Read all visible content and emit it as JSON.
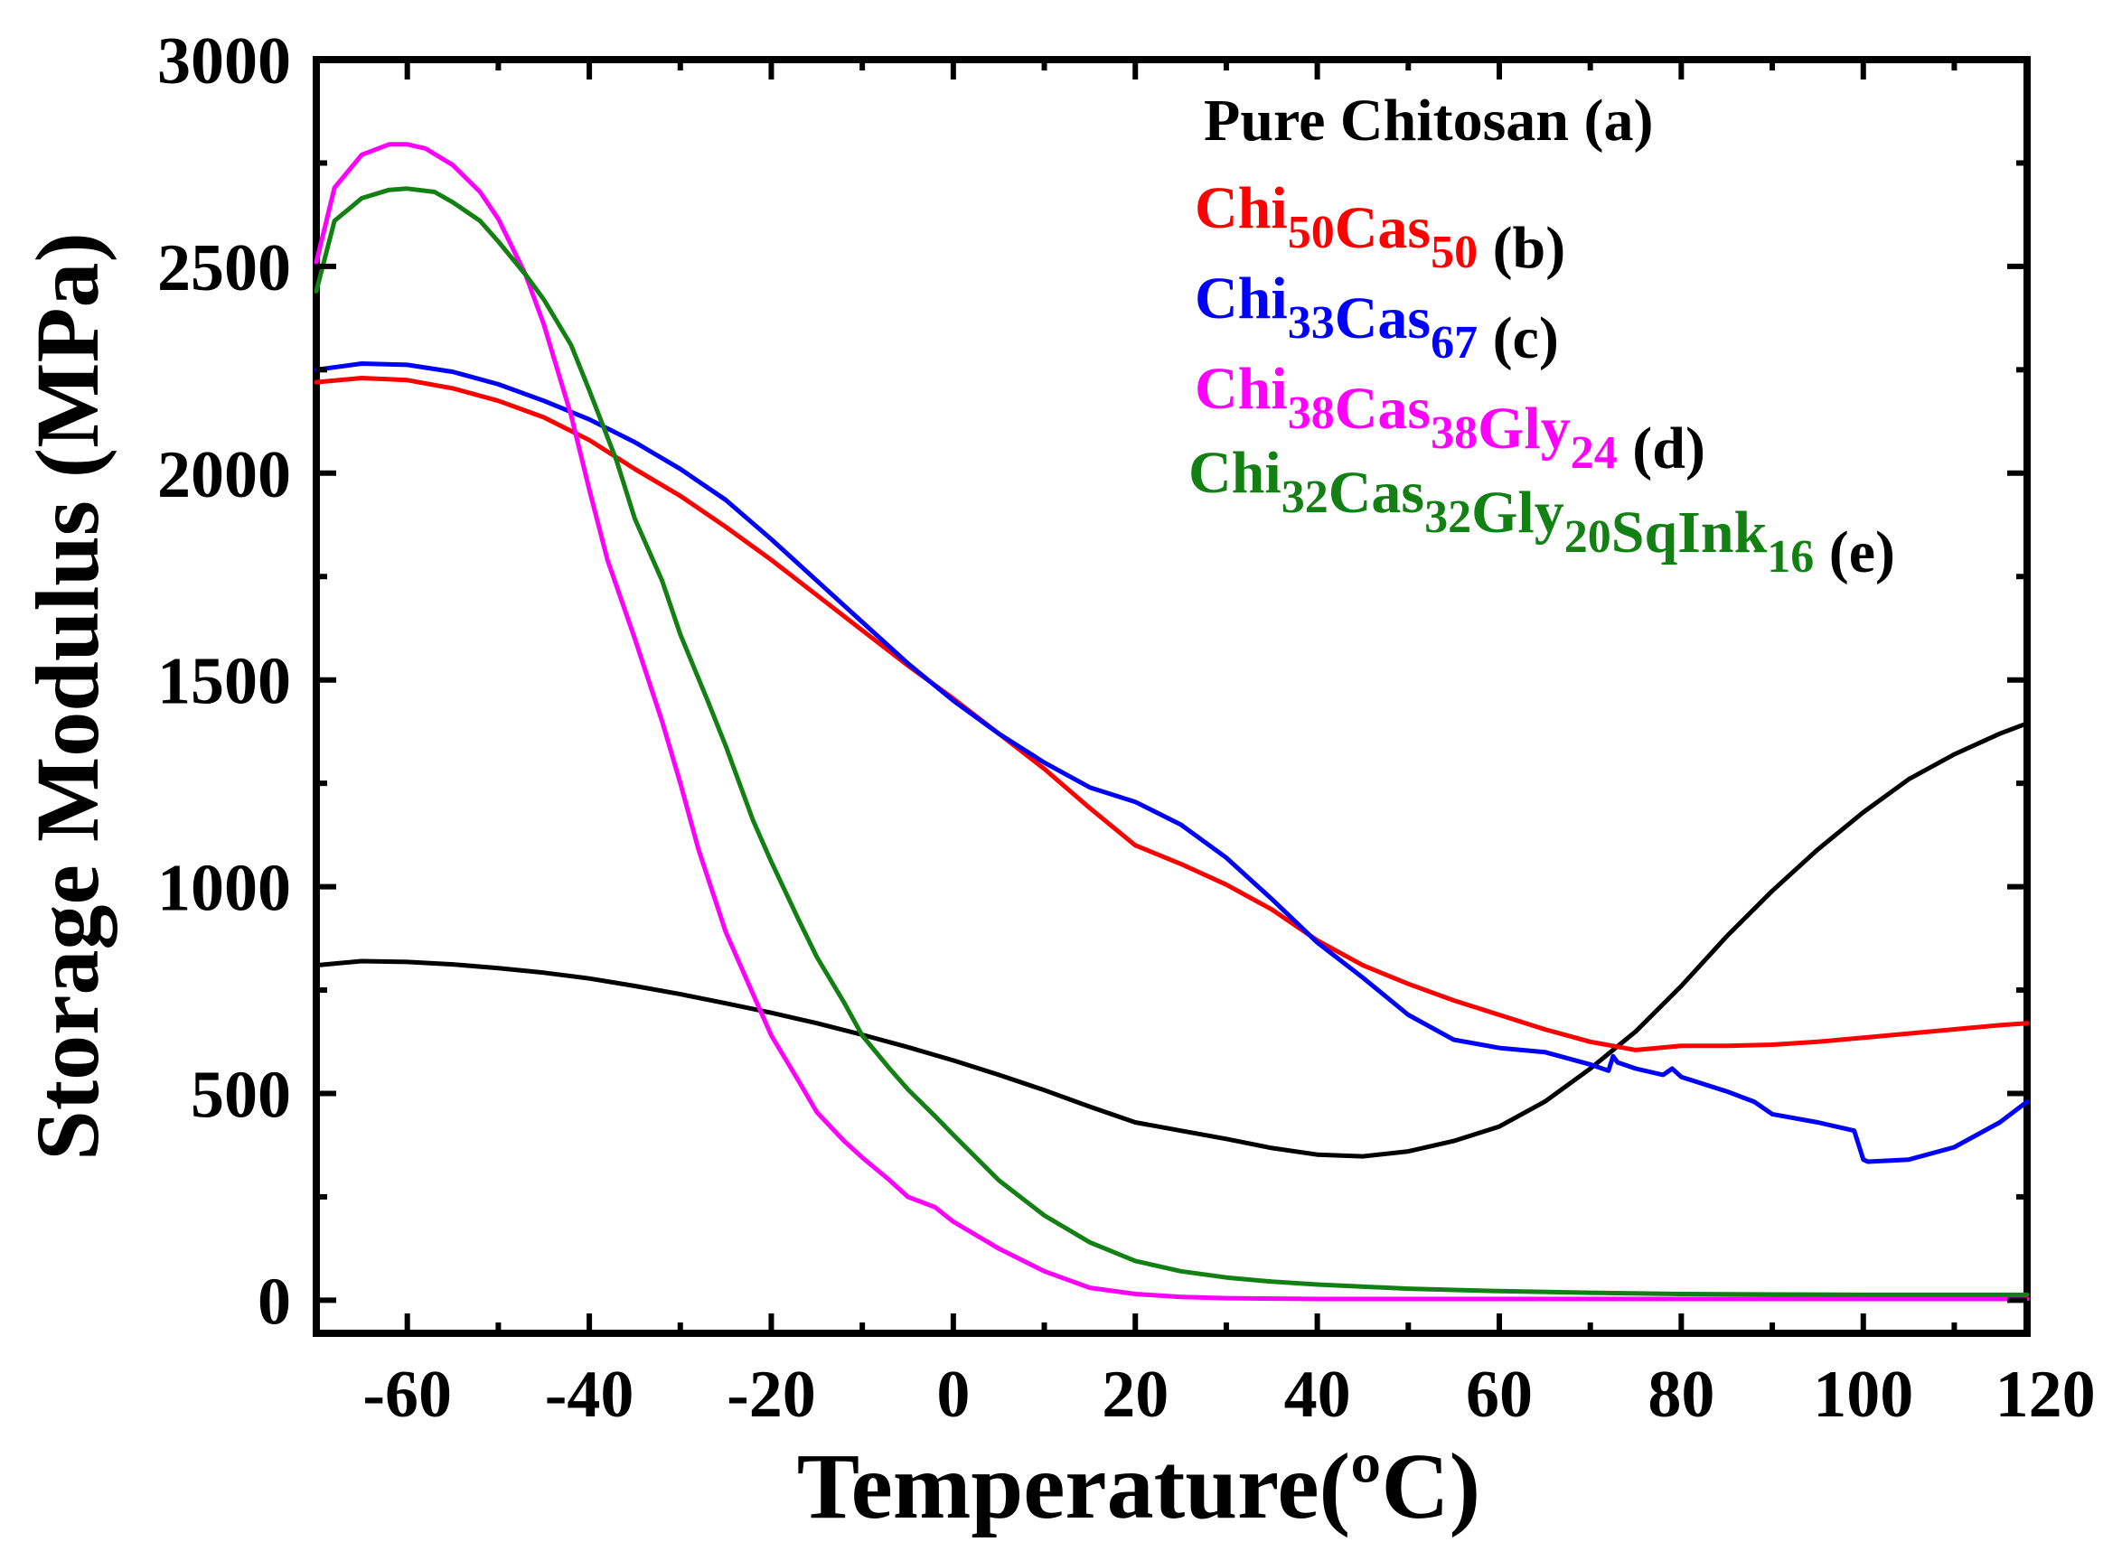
{
  "chart_data": {
    "type": "line",
    "title": "",
    "xlabel": "Temperature(ºC)",
    "ylabel": "Storage Modulus (MPa)",
    "xlim": [
      -70,
      118
    ],
    "ylim": [
      -80,
      3000
    ],
    "xticks": [
      -60,
      -40,
      -20,
      0,
      20,
      40,
      60,
      80,
      100,
      120
    ],
    "yticks": [
      0,
      500,
      1000,
      1500,
      2000,
      2500,
      3000
    ],
    "legend_position": "top-right",
    "series": [
      {
        "id": "a",
        "color": "#000000",
        "legend": [
          {
            "t": "Pure Chitosan"
          },
          {
            "t": " (a)",
            "c": "#000000"
          }
        ],
        "x": [
          -70,
          -65,
          -60,
          -55,
          -50,
          -45,
          -40,
          -35,
          -30,
          -25,
          -20,
          -15,
          -10,
          -5,
          0,
          5,
          10,
          15,
          20,
          25,
          30,
          35,
          40,
          45,
          50,
          55,
          60,
          65,
          70,
          75,
          80,
          85,
          90,
          95,
          100,
          105,
          110,
          115,
          118
        ],
        "y": [
          810,
          820,
          818,
          812,
          803,
          792,
          778,
          760,
          740,
          718,
          695,
          670,
          642,
          612,
          580,
          545,
          508,
          468,
          430,
          410,
          390,
          368,
          352,
          348,
          360,
          385,
          420,
          480,
          560,
          650,
          760,
          880,
          990,
          1090,
          1180,
          1260,
          1320,
          1370,
          1395
        ]
      },
      {
        "id": "b",
        "color": "#ff0000",
        "legend": [
          {
            "t": "Chi"
          },
          {
            "t": "50",
            "sub": true
          },
          {
            "t": "Cas"
          },
          {
            "t": "50",
            "sub": true
          },
          {
            "t": " (b)",
            "c": "#000000"
          }
        ],
        "x": [
          -70,
          -65,
          -60,
          -55,
          -50,
          -45,
          -40,
          -35,
          -30,
          -25,
          -20,
          -15,
          -10,
          -5,
          0,
          5,
          10,
          15,
          20,
          25,
          30,
          35,
          40,
          45,
          50,
          55,
          60,
          65,
          70,
          75,
          80,
          85,
          90,
          95,
          100,
          105,
          110,
          115,
          118
        ],
        "y": [
          2220,
          2230,
          2225,
          2205,
          2175,
          2135,
          2080,
          2010,
          1945,
          1870,
          1790,
          1705,
          1620,
          1535,
          1455,
          1370,
          1285,
          1190,
          1100,
          1055,
          1005,
          945,
          870,
          810,
          765,
          725,
          690,
          655,
          625,
          605,
          615,
          615,
          618,
          625,
          635,
          645,
          655,
          665,
          670
        ]
      },
      {
        "id": "c",
        "color": "#0000ff",
        "legend": [
          {
            "t": "Chi"
          },
          {
            "t": "33",
            "sub": true
          },
          {
            "t": "Cas"
          },
          {
            "t": "67",
            "sub": true
          },
          {
            "t": " (c)",
            "c": "#000000"
          }
        ],
        "x": [
          -70,
          -65,
          -60,
          -55,
          -50,
          -45,
          -40,
          -35,
          -30,
          -25,
          -20,
          -15,
          -10,
          -5,
          0,
          5,
          10,
          15,
          20,
          25,
          30,
          35,
          40,
          45,
          50,
          55,
          60,
          65,
          70,
          72,
          72.5,
          73,
          75,
          78,
          79,
          80,
          85,
          88,
          90,
          95,
          99,
          100,
          100.5,
          105,
          110,
          115,
          118
        ],
        "y": [
          2250,
          2265,
          2262,
          2245,
          2215,
          2175,
          2130,
          2075,
          2010,
          1935,
          1840,
          1740,
          1640,
          1540,
          1450,
          1370,
          1300,
          1240,
          1205,
          1150,
          1070,
          970,
          865,
          780,
          690,
          630,
          610,
          600,
          570,
          555,
          590,
          575,
          560,
          545,
          560,
          540,
          505,
          480,
          450,
          430,
          410,
          340,
          335,
          340,
          370,
          430,
          480
        ]
      },
      {
        "id": "d",
        "color": "#ff00ff",
        "legend": [
          {
            "t": "Chi"
          },
          {
            "t": "38",
            "sub": true
          },
          {
            "t": "Cas"
          },
          {
            "t": "38",
            "sub": true
          },
          {
            "t": "Gly"
          },
          {
            "t": "24",
            "sub": true
          },
          {
            "t": " (d)",
            "c": "#000000"
          }
        ],
        "x": [
          -70,
          -68,
          -65,
          -62,
          -60,
          -58,
          -55,
          -52,
          -50,
          -47,
          -45,
          -42,
          -40,
          -38,
          -35,
          -32,
          -30,
          -28,
          -25,
          -22,
          -20,
          -17,
          -15,
          -12,
          -10,
          -7,
          -5,
          -2,
          0,
          5,
          10,
          15,
          20,
          25,
          30,
          40,
          50,
          60,
          70,
          80,
          90,
          100,
          110,
          118
        ],
        "y": [
          2510,
          2690,
          2770,
          2795,
          2795,
          2785,
          2745,
          2680,
          2615,
          2480,
          2360,
          2140,
          1960,
          1790,
          1600,
          1400,
          1250,
          1090,
          890,
          740,
          640,
          530,
          455,
          385,
          345,
          290,
          250,
          225,
          190,
          125,
          70,
          30,
          15,
          8,
          5,
          3,
          3,
          3,
          3,
          3,
          3,
          3,
          3,
          3
        ]
      },
      {
        "id": "e",
        "color": "#138013",
        "legend": [
          {
            "t": "Chi"
          },
          {
            "t": "32",
            "sub": true
          },
          {
            "t": "Cas"
          },
          {
            "t": "32",
            "sub": true
          },
          {
            "t": "Gly"
          },
          {
            "t": "20",
            "sub": true
          },
          {
            "t": "SqInk"
          },
          {
            "t": "16",
            "sub": true
          },
          {
            "t": " (e)",
            "c": "#000000"
          }
        ],
        "x": [
          -70,
          -68,
          -65,
          -62,
          -60,
          -57,
          -55,
          -52,
          -50,
          -47,
          -45,
          -42,
          -40,
          -37,
          -35,
          -32,
          -30,
          -27,
          -25,
          -22,
          -20,
          -17,
          -15,
          -12,
          -10,
          -7,
          -5,
          -2,
          0,
          5,
          10,
          15,
          20,
          25,
          30,
          35,
          40,
          50,
          60,
          70,
          80,
          90,
          100,
          110,
          118
        ],
        "y": [
          2440,
          2610,
          2665,
          2685,
          2688,
          2680,
          2655,
          2610,
          2560,
          2480,
          2420,
          2310,
          2200,
          2030,
          1890,
          1740,
          1610,
          1450,
          1340,
          1160,
          1060,
          920,
          830,
          720,
          640,
          560,
          510,
          445,
          400,
          290,
          205,
          140,
          95,
          70,
          55,
          45,
          38,
          28,
          22,
          18,
          15,
          14,
          13,
          13,
          13
        ]
      }
    ]
  }
}
